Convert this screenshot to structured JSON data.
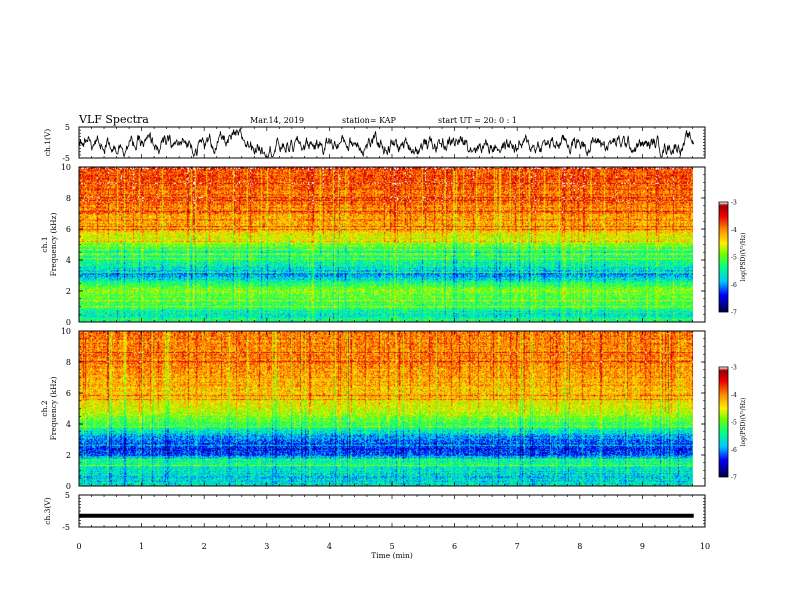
{
  "header": {
    "title": "VLF Spectra",
    "date": "Mar.14, 2019",
    "station": "station= KAP",
    "start": "start  UT =   20: 0  : 1"
  },
  "chart_data": [
    {
      "type": "line",
      "panel": "ch1-waveform",
      "ylabel": "ch.1(V)",
      "ylim": [
        -5,
        5
      ],
      "yticks": [
        "5",
        "-5"
      ],
      "xlim": [
        0,
        10
      ],
      "description_of_values": "noisy waveform, mostly between -3 and 3 V"
    },
    {
      "type": "heatmap",
      "panel": "ch1-spectrogram",
      "ylabel_line1": "ch.1",
      "ylabel_line2": "Frequency (kHz)",
      "ylim": [
        0,
        10
      ],
      "yticks": [
        "0",
        "2",
        "4",
        "6",
        "8",
        "10"
      ],
      "xlim": [
        0,
        9.8
      ],
      "colorbar": {
        "label": "log(PSD)(V²/Hz)",
        "range": [
          -7,
          -3
        ],
        "ticks": [
          "-3",
          "-4",
          "-5",
          "-6",
          "-7"
        ],
        "colors": [
          "#ffffff",
          "#ff0000",
          "#ffff00",
          "#00ff00",
          "#00ffff",
          "#0000ff",
          "#000066"
        ]
      },
      "profile_khz_to_level": [
        [
          0.0,
          -5.3
        ],
        [
          0.5,
          -5.6
        ],
        [
          1.0,
          -5.2
        ],
        [
          1.5,
          -5.1
        ],
        [
          2.0,
          -4.9
        ],
        [
          2.5,
          -5.4
        ],
        [
          3.0,
          -6.0
        ],
        [
          3.5,
          -5.6
        ],
        [
          4.0,
          -5.3
        ],
        [
          4.5,
          -5.5
        ],
        [
          5.0,
          -4.9
        ],
        [
          5.5,
          -4.5
        ],
        [
          6.0,
          -4.2
        ],
        [
          7.0,
          -4.0
        ],
        [
          8.0,
          -3.9
        ],
        [
          9.0,
          -3.8
        ],
        [
          10.0,
          -3.7
        ]
      ]
    },
    {
      "type": "heatmap",
      "panel": "ch2-spectrogram",
      "ylabel_line1": "ch.2",
      "ylabel_line2": "Frequency (kHz)",
      "ylim": [
        0,
        10
      ],
      "yticks": [
        "0",
        "2",
        "4",
        "6",
        "8",
        "10"
      ],
      "xlim": [
        0,
        9.8
      ],
      "colorbar": {
        "label": "log(PSD)(V²/Hz)",
        "range": [
          -7,
          -3
        ],
        "ticks": [
          "-3",
          "-4",
          "-5",
          "-6",
          "-7"
        ],
        "colors": [
          "#ffffff",
          "#ff0000",
          "#ffff00",
          "#00ff00",
          "#00ffff",
          "#0000ff",
          "#000066"
        ]
      },
      "profile_khz_to_level": [
        [
          0.0,
          -5.6
        ],
        [
          0.5,
          -5.8
        ],
        [
          1.0,
          -5.6
        ],
        [
          1.5,
          -5.4
        ],
        [
          2.0,
          -6.2
        ],
        [
          2.5,
          -6.4
        ],
        [
          3.0,
          -6.1
        ],
        [
          3.5,
          -5.6
        ],
        [
          4.0,
          -5.2
        ],
        [
          4.5,
          -4.9
        ],
        [
          5.0,
          -4.6
        ],
        [
          6.0,
          -4.3
        ],
        [
          7.0,
          -4.1
        ],
        [
          8.0,
          -4.0
        ],
        [
          9.0,
          -4.0
        ],
        [
          10.0,
          -4.0
        ]
      ]
    },
    {
      "type": "line",
      "panel": "ch3-waveform",
      "ylabel": "ch.3(V)",
      "ylim": [
        -5,
        5
      ],
      "yticks": [
        "5",
        "-5"
      ],
      "xlim": [
        0,
        10
      ],
      "constant_value": -1.5
    }
  ],
  "xaxis": {
    "label": "Time (min)",
    "ticks": [
      "0",
      "1",
      "2",
      "3",
      "4",
      "5",
      "6",
      "7",
      "8",
      "9",
      "10"
    ]
  }
}
